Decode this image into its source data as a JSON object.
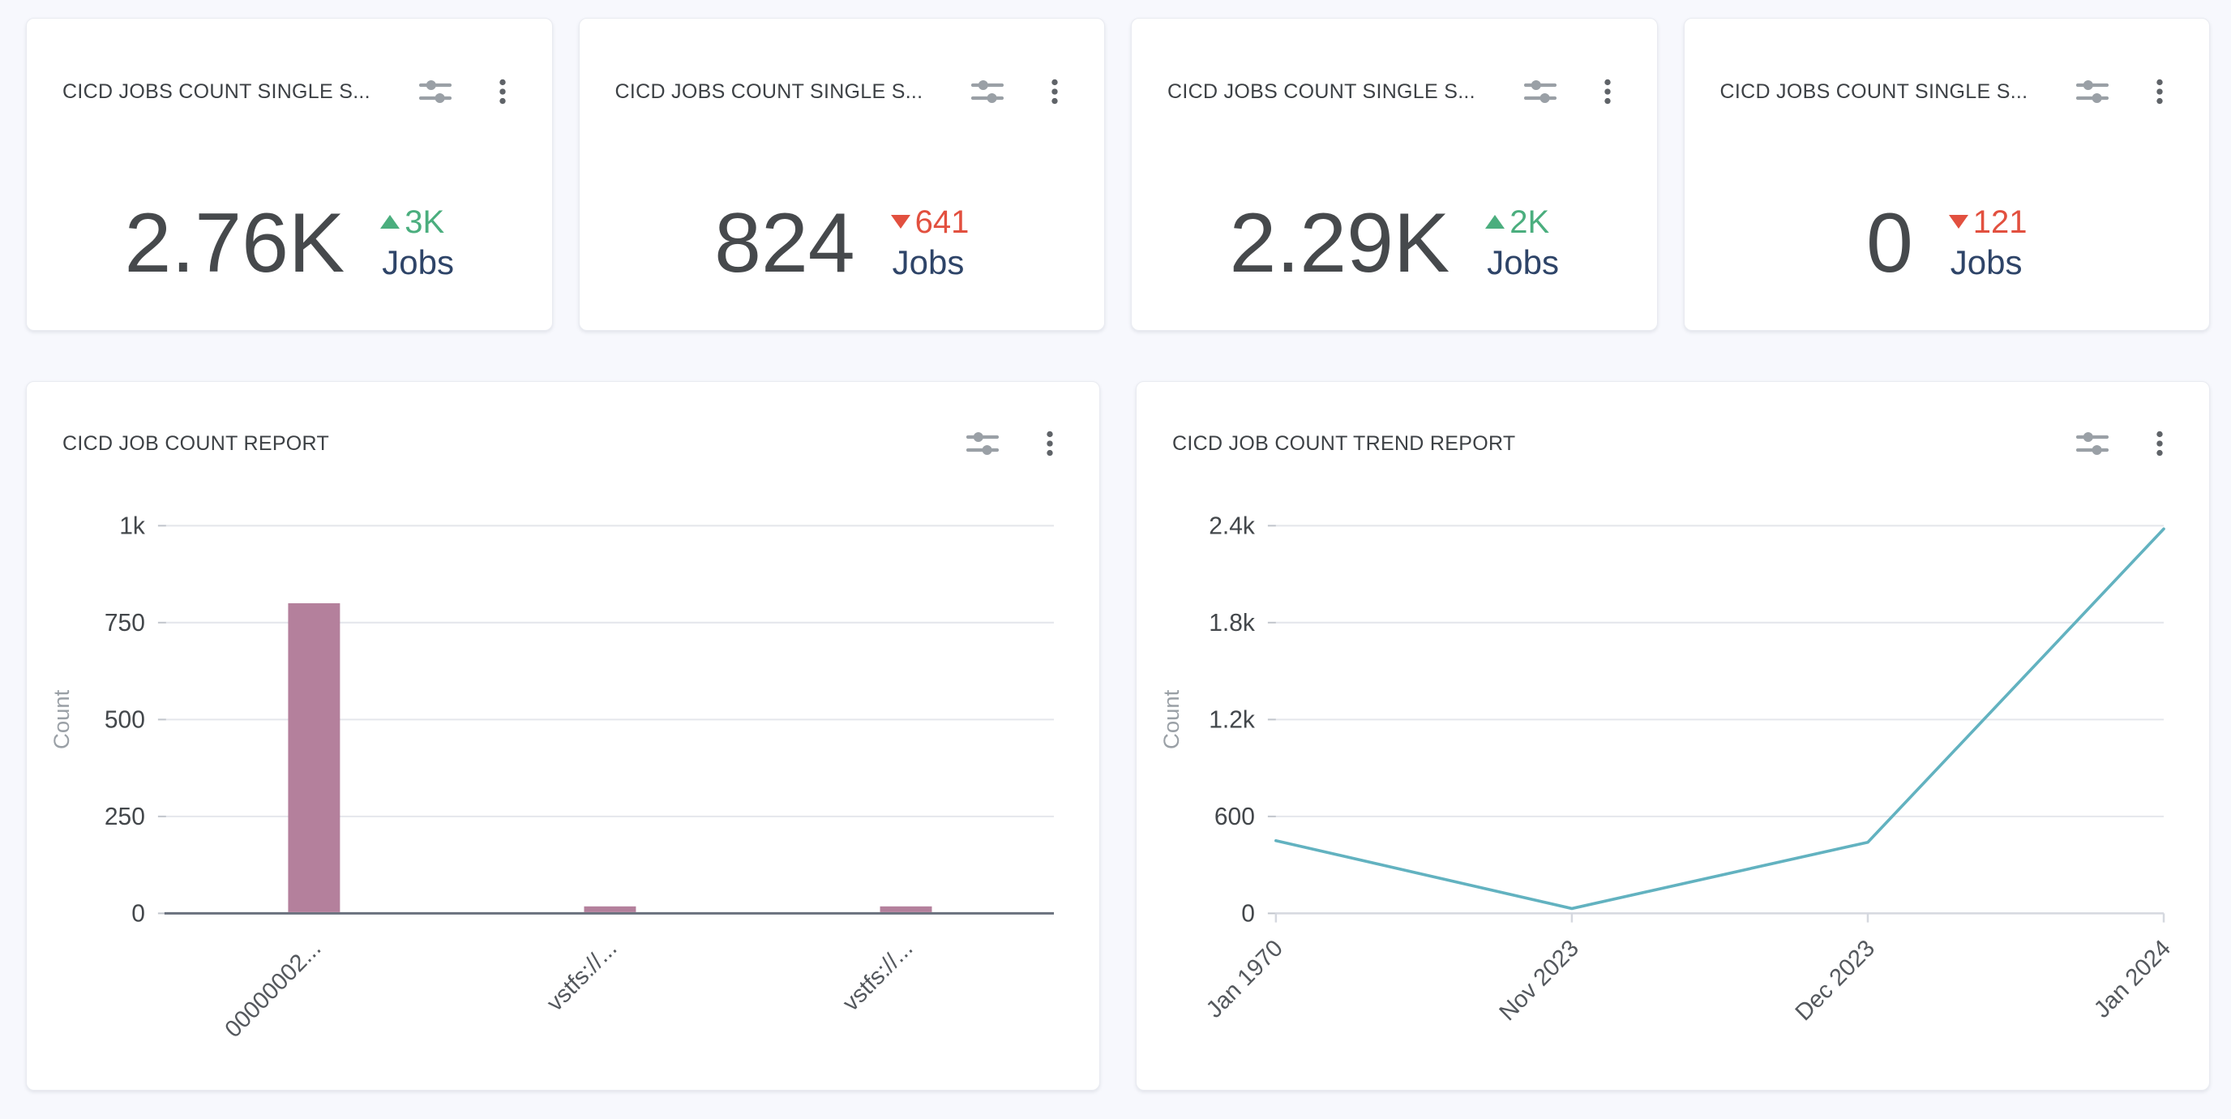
{
  "colors": {
    "page_bg": "#f7f8fd",
    "card_bg": "#ffffff",
    "title": "#3d4145",
    "value": "#46494c",
    "up": "#4bae7e",
    "down": "#e2503f",
    "unit": "#2e4468",
    "icon": "#9aa0a6",
    "kebab": "#5f6368",
    "grid": "#e5e7ec",
    "tick_text": "#43474b",
    "axis_name": "#9aa0a6",
    "xlabel": "#54585d",
    "bar_axis": "#6a717e",
    "line_axis": "#d5d8df",
    "stub": "#c2c6cd",
    "bar": "#b4809c",
    "line": "#62b2c0"
  },
  "card_action_icons": [
    "sliders-icon",
    "kebab-menu-icon"
  ],
  "stat_cards": [
    {
      "title": "CICD JOBS COUNT SINGLE S...",
      "value": "2.76K",
      "delta": "3K",
      "direction": "up",
      "unit": "Jobs"
    },
    {
      "title": "CICD JOBS COUNT SINGLE S...",
      "value": "824",
      "delta": "641",
      "direction": "down",
      "unit": "Jobs"
    },
    {
      "title": "CICD JOBS COUNT SINGLE S...",
      "value": "2.29K",
      "delta": "2K",
      "direction": "up",
      "unit": "Jobs"
    },
    {
      "title": "CICD JOBS COUNT SINGLE S...",
      "value": "0",
      "delta": "121",
      "direction": "down",
      "unit": "Jobs"
    }
  ],
  "chart_data": [
    {
      "type": "bar",
      "title": "CICD JOB COUNT REPORT",
      "ylabel": "Count",
      "xlabel": "",
      "categories": [
        "00000002...",
        "vstfs://...",
        "vstfs://..."
      ],
      "values": [
        800,
        18,
        18
      ],
      "ylim": [
        0,
        1000
      ],
      "yticks": [
        {
          "v": 0,
          "label": "0"
        },
        {
          "v": 250,
          "label": "250"
        },
        {
          "v": 500,
          "label": "500"
        },
        {
          "v": 750,
          "label": "750"
        },
        {
          "v": 1000,
          "label": "1k"
        }
      ],
      "grid": true,
      "legend_position": "none",
      "bar_color": "#b4809c",
      "x_label_rotation": 45
    },
    {
      "type": "line",
      "title": "CICD JOB COUNT TREND REPORT",
      "ylabel": "Count",
      "xlabel": "",
      "x": [
        "Jan 1970",
        "Nov 2023",
        "Dec 2023",
        "Jan 2024"
      ],
      "values": [
        450,
        30,
        440,
        2380
      ],
      "ylim": [
        0,
        2400
      ],
      "yticks": [
        {
          "v": 0,
          "label": "0"
        },
        {
          "v": 600,
          "label": "600"
        },
        {
          "v": 1200,
          "label": "1.2k"
        },
        {
          "v": 1800,
          "label": "1.8k"
        },
        {
          "v": 2400,
          "label": "2.4k"
        }
      ],
      "grid": true,
      "legend_position": "none",
      "line_color": "#62b2c0",
      "x_label_rotation": 45
    }
  ]
}
